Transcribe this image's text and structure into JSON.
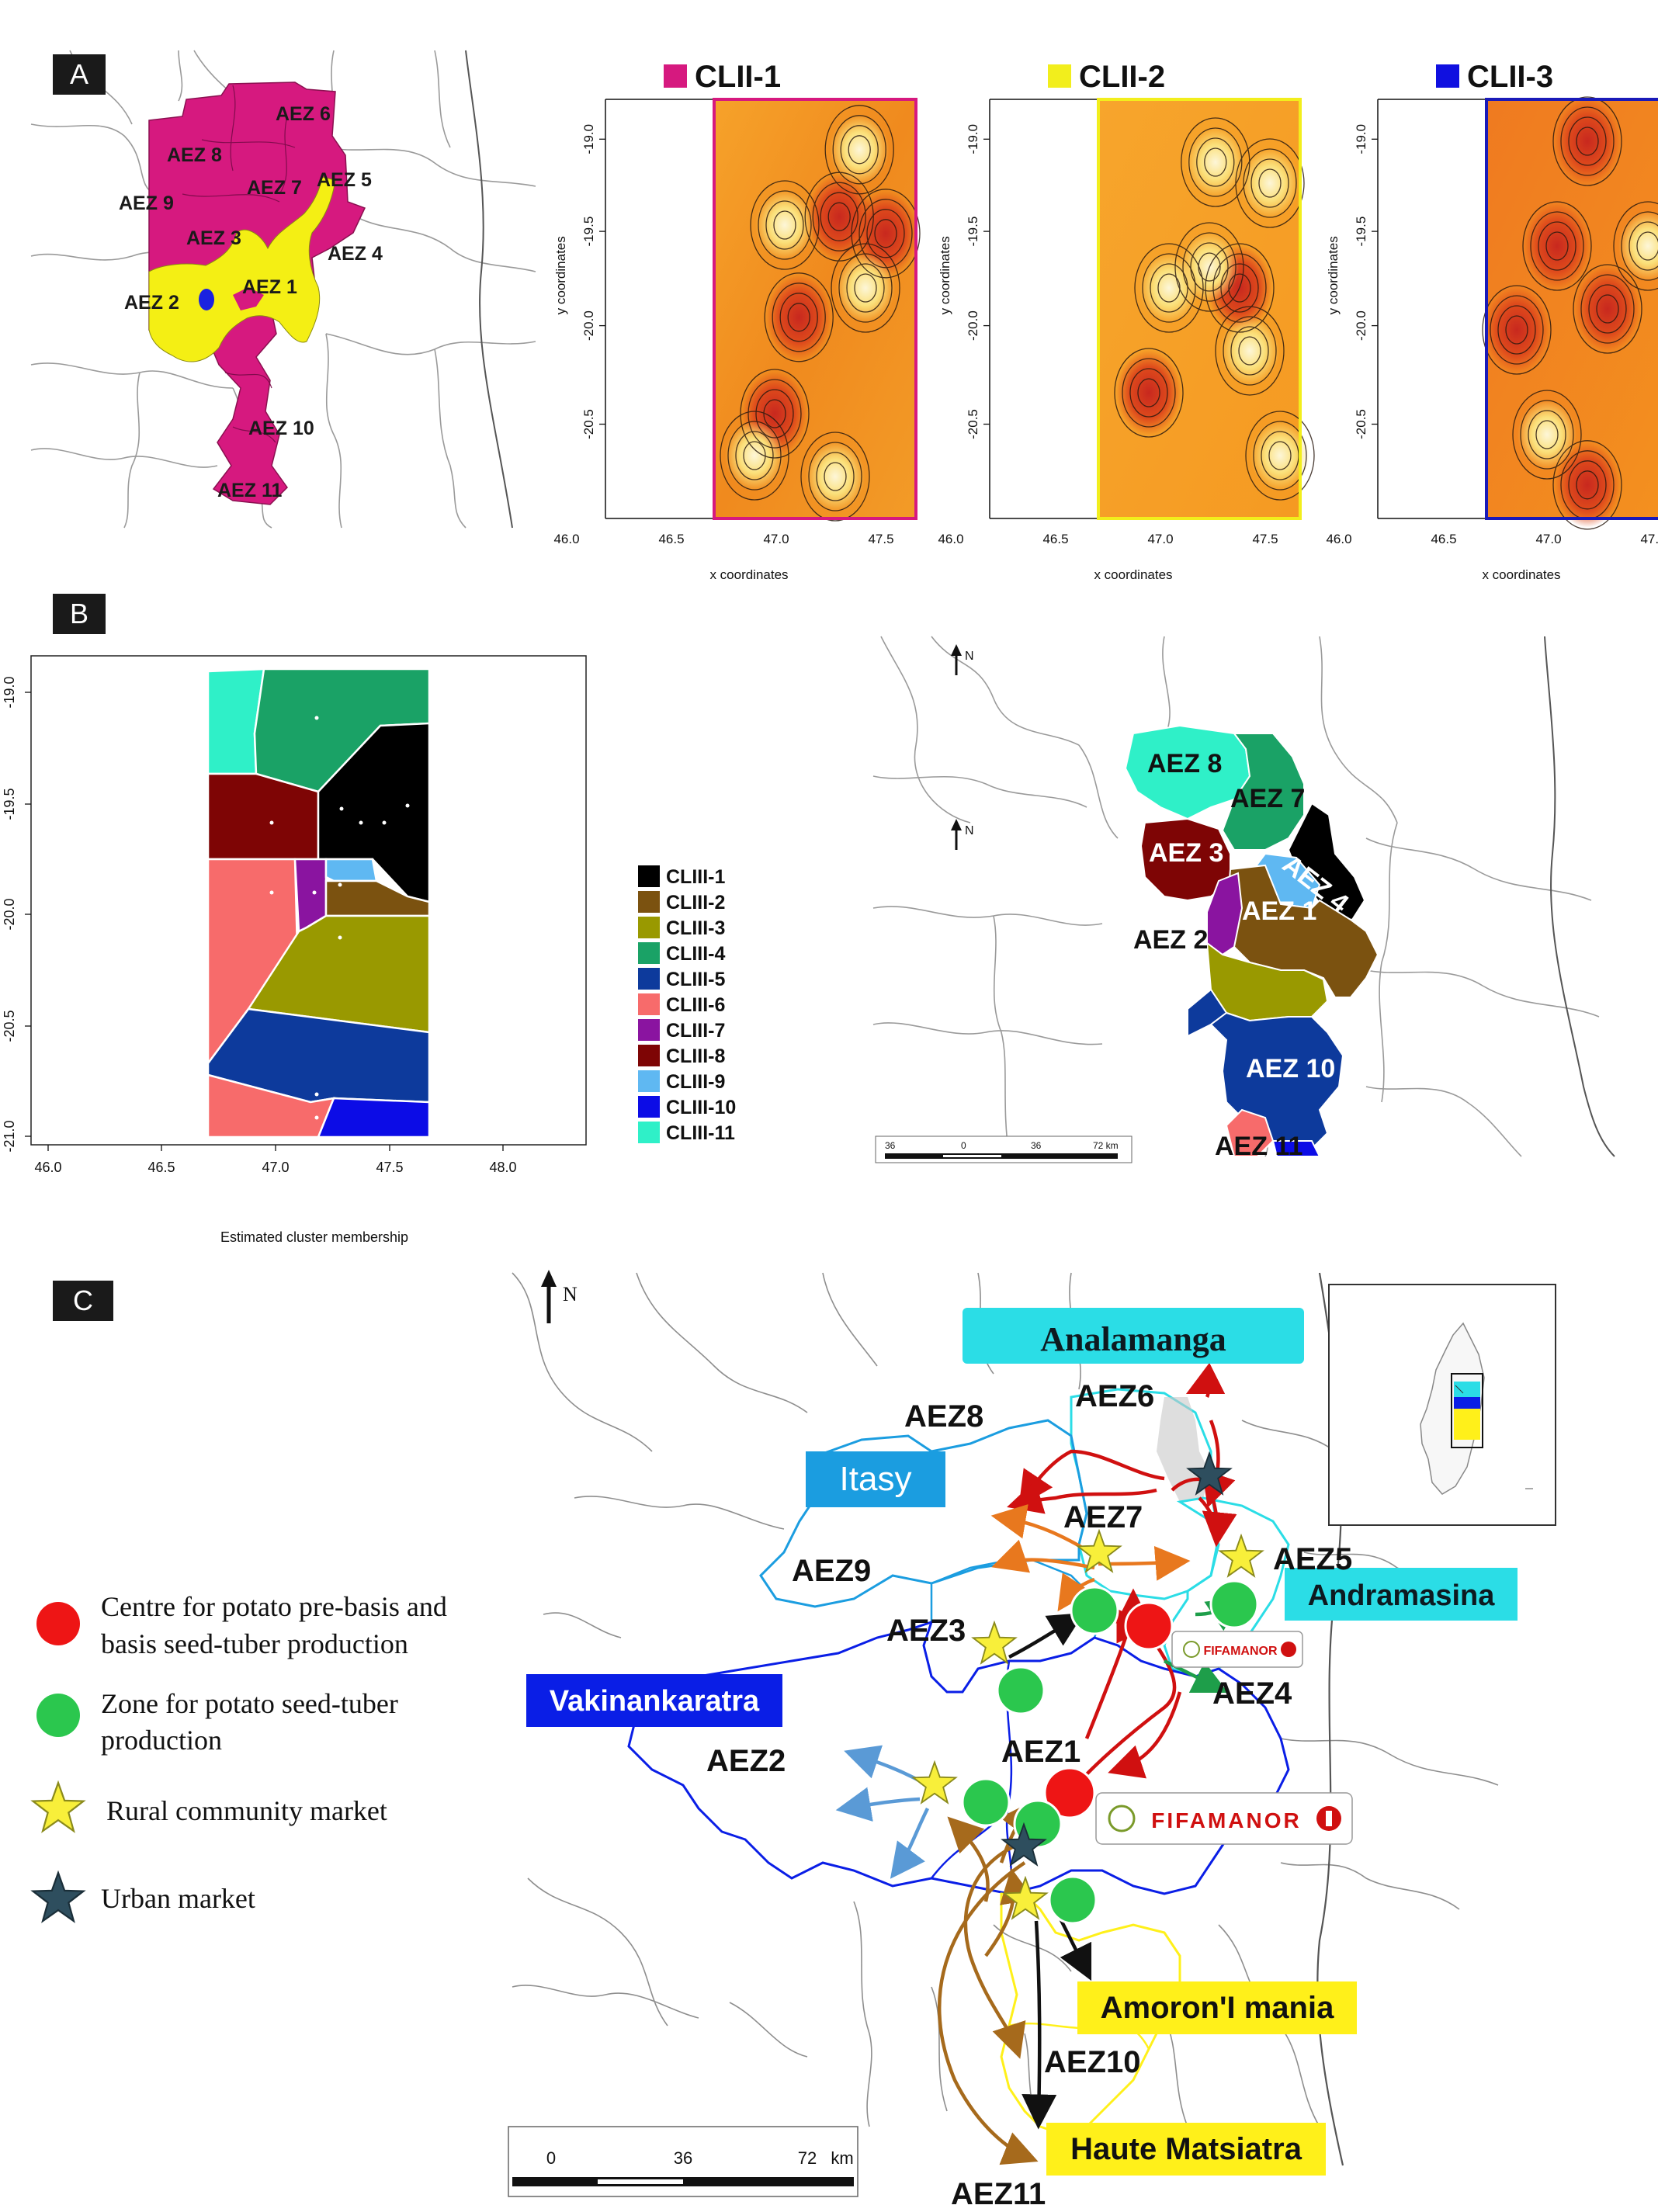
{
  "panel_labels": {
    "a": "A",
    "b": "B",
    "c": "C"
  },
  "panelA": {
    "aez_labels": [
      "AEZ 6",
      "AEZ 8",
      "AEZ 7",
      "AEZ 5",
      "AEZ 9",
      "AEZ 3",
      "AEZ 4",
      "AEZ 2",
      "AEZ 1",
      "AEZ 10",
      "AEZ 11"
    ],
    "cluster_maps": [
      {
        "title": "CLII-1",
        "swatch": "#d6197f",
        "border": "#d6197f"
      },
      {
        "title": "CLII-2",
        "swatch": "#f2ee1c",
        "border": "#f2ee1c"
      },
      {
        "title": "CLII-3",
        "swatch": "#1010e0",
        "border": "#1a1ab8"
      }
    ],
    "y_ticks": [
      "-19.0",
      "-19.5",
      "-20.0",
      "-20.5"
    ],
    "x_ticks": [
      "46.0",
      "46.5",
      "47.0",
      "47.5"
    ],
    "xlabel": "x coordinates",
    "ylabel": "y coordinates"
  },
  "panelB": {
    "y_ticks": [
      "-19.0",
      "-19.5",
      "-20.0",
      "-20.5",
      "-21.0"
    ],
    "x_ticks": [
      "46.0",
      "46.5",
      "47.0",
      "47.5",
      "48.0"
    ],
    "xlabel": "Estimated cluster membership",
    "legend": [
      {
        "label": "CLIII-1",
        "color": "#000000"
      },
      {
        "label": "CLIII-2",
        "color": "#7b5210"
      },
      {
        "label": "CLIII-3",
        "color": "#999900"
      },
      {
        "label": "CLIII-4",
        "color": "#1aa266"
      },
      {
        "label": "CLIII-5",
        "color": "#0d3a9c"
      },
      {
        "label": "CLIII-6",
        "color": "#f76b6b"
      },
      {
        "label": "CLIII-7",
        "color": "#8a14a0"
      },
      {
        "label": "CLIII-8",
        "color": "#7e0505"
      },
      {
        "label": "CLIII-9",
        "color": "#5fb8f2"
      },
      {
        "label": "CLIII-10",
        "color": "#0c0ce6"
      },
      {
        "label": "CLIII-11",
        "color": "#2ff0c8"
      }
    ],
    "map_labels": [
      "AEZ 8",
      "AEZ 7",
      "AEZ 3",
      "AEZ 4",
      "AEZ 1",
      "AEZ 2",
      "AEZ 10",
      "AEZ 11"
    ],
    "north": "N",
    "scale": {
      "l0": "36",
      "l1": "0",
      "l2": "36",
      "l3": "72 km"
    }
  },
  "panelC": {
    "north": "N",
    "regions": {
      "analamanga": "Analamanga",
      "itasy": "Itasy",
      "andramasina": "Andramasina",
      "vakinankaratra": "Vakinankaratra",
      "amoroni": "Amoron'I mania",
      "haute": "Haute Matsiatra"
    },
    "aez_labels": [
      "AEZ6",
      "AEZ8",
      "AEZ7",
      "AEZ9",
      "AEZ5",
      "AEZ3",
      "AEZ4",
      "AEZ2",
      "AEZ1",
      "AEZ10",
      "AEZ11"
    ],
    "logo_text": "FIFAMANOR",
    "legend": {
      "red": "Centre for potato pre-basis and basis seed-tuber production",
      "green": "Zone for potato seed-tuber production",
      "star": "Rural community market",
      "urban": "Urban market"
    },
    "scale": {
      "l0": "0",
      "l1": "36",
      "l2": "72",
      "unit": "km"
    },
    "colors": {
      "itasy": "#1b9de0",
      "vakinankaratra": "#0a1ee6",
      "analamanga": "#2bdde6",
      "amoroni": "#fff01a",
      "arrow_red": "#d01010",
      "arrow_orange": "#e8781e",
      "arrow_brown": "#a66a1c",
      "arrow_blue": "#5a9ad6",
      "arrow_green": "#1e9e4a"
    }
  }
}
